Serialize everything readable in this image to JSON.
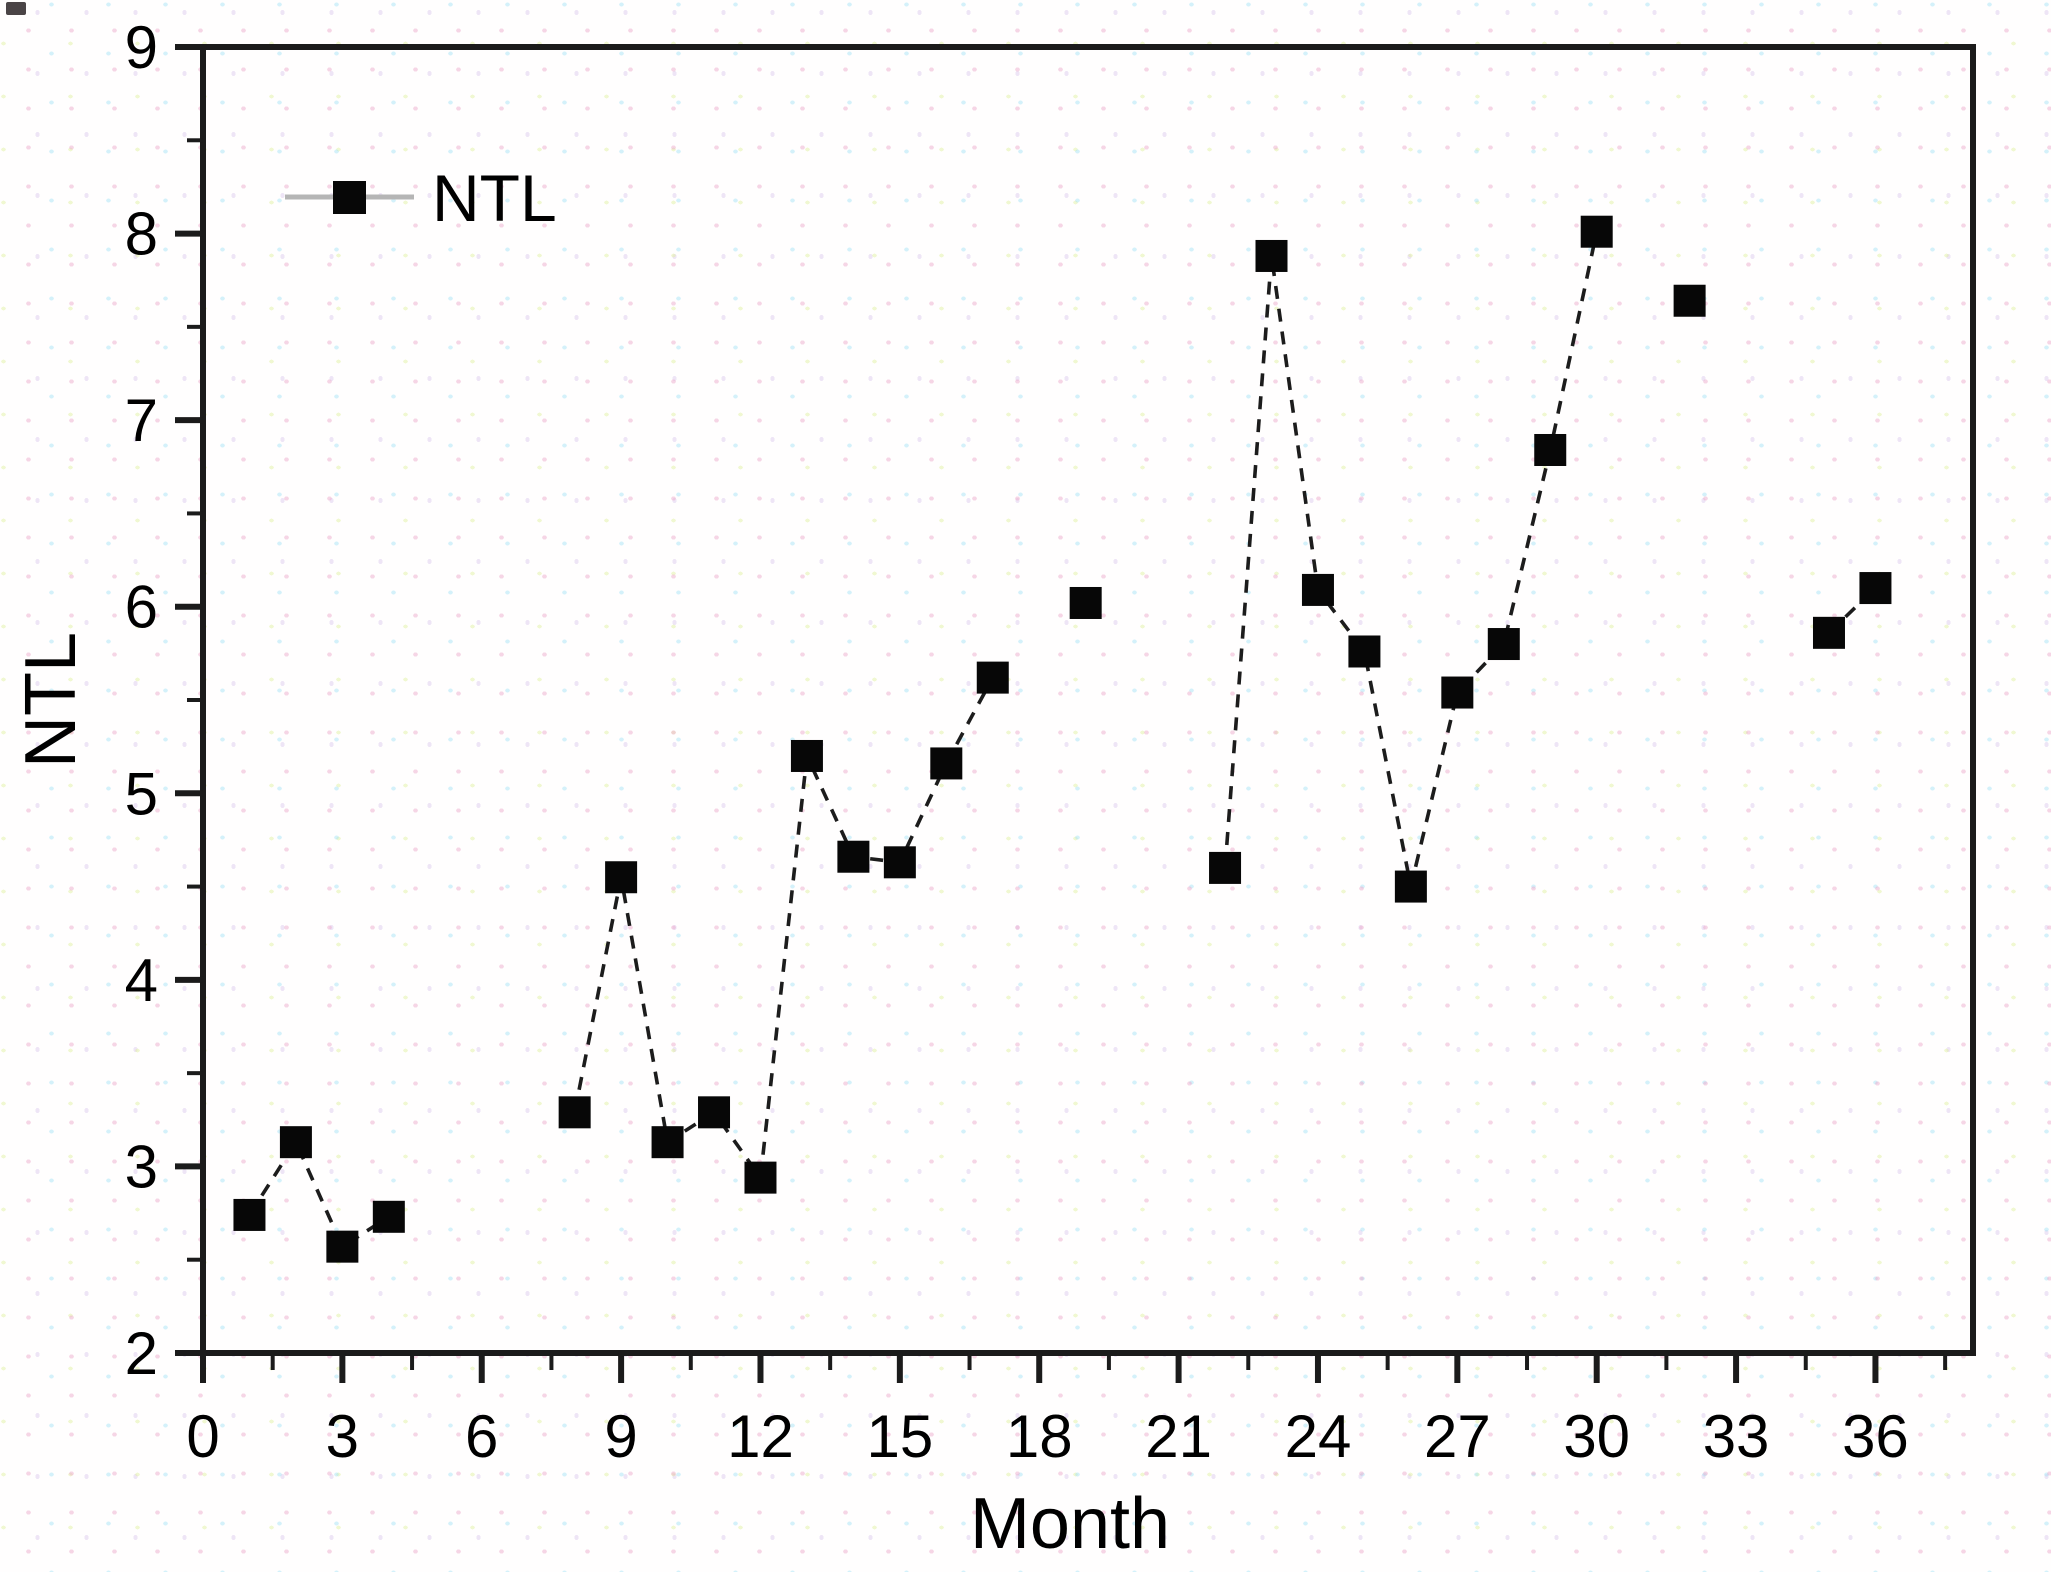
{
  "figure": {
    "description": "Scatter-line plot of NTL values by month with gaps",
    "corner_artifact": true
  },
  "chart_data": {
    "type": "line",
    "title": "",
    "xlabel": "Month",
    "ylabel": "NTL",
    "legend": {
      "label": "NTL",
      "marker": "filled-square",
      "line_style": "dashed",
      "position": "top-left-inside"
    },
    "xlim": [
      0,
      38.1
    ],
    "ylim": [
      2,
      9
    ],
    "grid": false,
    "x_major_ticks": [
      0,
      3,
      6,
      9,
      12,
      15,
      18,
      21,
      24,
      27,
      30,
      33,
      36
    ],
    "x_minor_ticks": [
      1.5,
      4.5,
      7.5,
      10.5,
      13.5,
      16.5,
      19.5,
      22.5,
      25.5,
      28.5,
      31.5,
      34.5,
      37.5
    ],
    "y_major_ticks": [
      2,
      3,
      4,
      5,
      6,
      7,
      8,
      9
    ],
    "y_minor_ticks": [
      2.5,
      3.5,
      4.5,
      5.5,
      6.5,
      7.5,
      8.5
    ],
    "series": [
      {
        "name": "NTL",
        "connect_rule": "consecutive-months-only",
        "points": [
          [
            1,
            2.74
          ],
          [
            2,
            3.13
          ],
          [
            3,
            2.57
          ],
          [
            4,
            2.73
          ],
          [
            8,
            3.29
          ],
          [
            9,
            4.55
          ],
          [
            10,
            3.13
          ],
          [
            11,
            3.29
          ],
          [
            12,
            2.94
          ],
          [
            13,
            5.2
          ],
          [
            14,
            4.66
          ],
          [
            15,
            4.63
          ],
          [
            16,
            5.16
          ],
          [
            17,
            5.62
          ],
          [
            19,
            6.02
          ],
          [
            22,
            4.6
          ],
          [
            23,
            7.88
          ],
          [
            24,
            6.09
          ],
          [
            25,
            5.76
          ],
          [
            26,
            4.5
          ],
          [
            27,
            5.54
          ],
          [
            28,
            5.8
          ],
          [
            29,
            6.84
          ],
          [
            30,
            8.01
          ],
          [
            32,
            7.64
          ],
          [
            35,
            5.86
          ],
          [
            36,
            6.1
          ]
        ]
      }
    ],
    "colors": {
      "marker": "#070707",
      "line": "#1c1c1c",
      "axis": "#1b1b1b",
      "legend_line": "#b5b5b5",
      "text": "#000000"
    }
  }
}
